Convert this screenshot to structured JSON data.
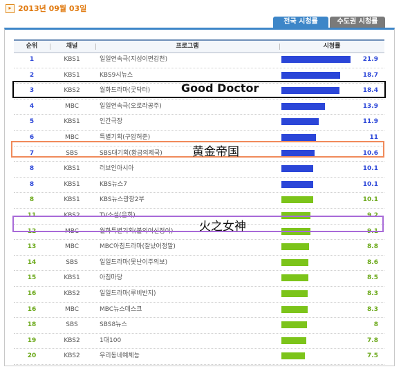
{
  "date": "2013년 09월 03일",
  "tabs": [
    "전국 시청률",
    "수도권 시청률"
  ],
  "columns": [
    "순위",
    "채널",
    "프로그램",
    "시청률"
  ],
  "colors": {
    "top_bar": "#2b46d8",
    "bottom_bar": "#7cc41a",
    "top_text": "#2b46d8",
    "bottom_text": "#6aa818"
  },
  "rows": [
    {
      "rank": "1",
      "channel": "KBS1",
      "program": "일일연속극(지성이면감천)",
      "rating": "21.9",
      "value": 21.9,
      "color": "blue"
    },
    {
      "rank": "2",
      "channel": "KBS1",
      "program": "KBS9시뉴스",
      "rating": "18.7",
      "value": 18.7,
      "color": "blue"
    },
    {
      "rank": "3",
      "channel": "KBS2",
      "program": "월화드라마(굿닥터)",
      "rating": "18.4",
      "value": 18.4,
      "color": "blue"
    },
    {
      "rank": "4",
      "channel": "MBC",
      "program": "일일연속극(오로라공주)",
      "rating": "13.9",
      "value": 13.9,
      "color": "blue"
    },
    {
      "rank": "5",
      "channel": "KBS1",
      "program": "인간극장",
      "rating": "11.9",
      "value": 11.9,
      "color": "blue"
    },
    {
      "rank": "6",
      "channel": "MBC",
      "program": "특별기획(구암허준)",
      "rating": "11",
      "value": 11.0,
      "color": "blue"
    },
    {
      "rank": "7",
      "channel": "SBS",
      "program": "SBS대기획(황금의제국)",
      "rating": "10.6",
      "value": 10.6,
      "color": "blue"
    },
    {
      "rank": "8",
      "channel": "KBS1",
      "program": "러브인아시아",
      "rating": "10.1",
      "value": 10.1,
      "color": "blue"
    },
    {
      "rank": "8",
      "channel": "KBS1",
      "program": "KBS뉴스7",
      "rating": "10.1",
      "value": 10.1,
      "color": "blue"
    },
    {
      "rank": "8",
      "channel": "KBS1",
      "program": "KBS뉴스광장2부",
      "rating": "10.1",
      "value": 10.1,
      "color": "green"
    },
    {
      "rank": "11",
      "channel": "KBS2",
      "program": "TV소설(은희)",
      "rating": "9.2",
      "value": 9.2,
      "color": "green"
    },
    {
      "rank": "12",
      "channel": "MBC",
      "program": "월화특별기획(불의여신정이)",
      "rating": "9.1",
      "value": 9.1,
      "color": "green"
    },
    {
      "rank": "13",
      "channel": "MBC",
      "program": "MBC아침드라마(잘났어정말)",
      "rating": "8.8",
      "value": 8.8,
      "color": "green"
    },
    {
      "rank": "14",
      "channel": "SBS",
      "program": "일일드라마(못난이주의보)",
      "rating": "8.6",
      "value": 8.6,
      "color": "green"
    },
    {
      "rank": "15",
      "channel": "KBS1",
      "program": "아침마당",
      "rating": "8.5",
      "value": 8.5,
      "color": "green"
    },
    {
      "rank": "16",
      "channel": "KBS2",
      "program": "일일드라마(루비반지)",
      "rating": "8.3",
      "value": 8.3,
      "color": "green"
    },
    {
      "rank": "16",
      "channel": "MBC",
      "program": "MBC뉴스데스크",
      "rating": "8.3",
      "value": 8.3,
      "color": "green"
    },
    {
      "rank": "18",
      "channel": "SBS",
      "program": "SBS8뉴스",
      "rating": "8",
      "value": 8.0,
      "color": "green"
    },
    {
      "rank": "19",
      "channel": "KBS2",
      "program": "1대100",
      "rating": "7.8",
      "value": 7.8,
      "color": "green"
    },
    {
      "rank": "20",
      "channel": "KBS2",
      "program": "우리동네예체능",
      "rating": "7.5",
      "value": 7.5,
      "color": "green"
    }
  ],
  "annotations": [
    {
      "row": 2,
      "text": "Good Doctor",
      "color": "#000000"
    },
    {
      "row": 6,
      "text": "黄金帝国",
      "color": "#f08a5a"
    },
    {
      "row": 11,
      "text": "火之女神",
      "color": "#a86ad8"
    }
  ]
}
